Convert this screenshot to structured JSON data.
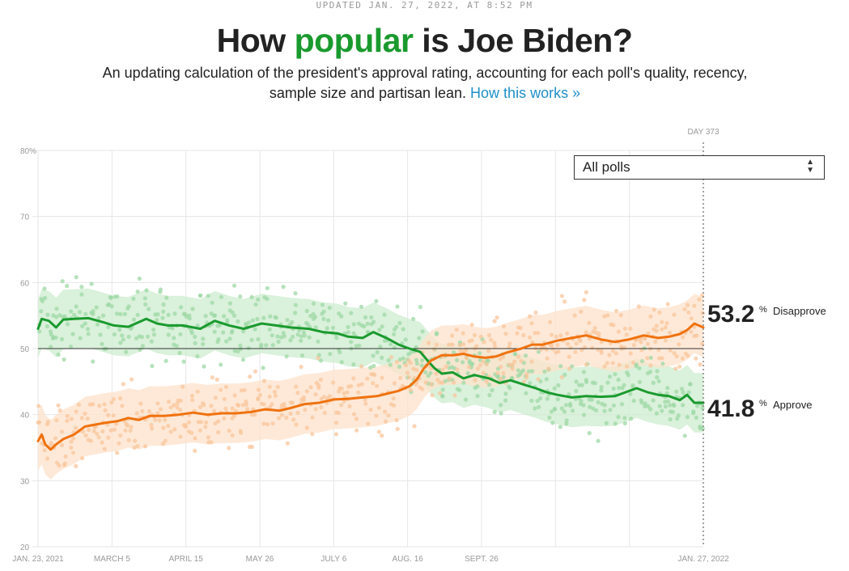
{
  "header": {
    "updated": "UPDATED JAN. 27, 2022, AT 8:52 PM",
    "title_pre": "How ",
    "title_highlight": "popular",
    "title_post": " is Joe Biden?",
    "subtitle": "An updating calculation of the president's approval rating, accounting for each poll's quality, recency, sample size and partisan lean.",
    "subtitle_link": "How this works »"
  },
  "filter": {
    "selected": "All polls"
  },
  "colors": {
    "approve": "#1a9a2e",
    "approve_band": "#cdeccf",
    "approve_dot": "#9ed8a5",
    "disapprove": "#f0720f",
    "disapprove_band": "#fde2cb",
    "disapprove_dot": "#f8c69c",
    "grid": "#e6e6e6",
    "axis_text": "#999999",
    "midline": "#333333"
  },
  "day_marker": "DAY 373",
  "results": {
    "disapprove_value": "53.2",
    "disapprove_label": "Disapprove",
    "approve_value": "41.8",
    "approve_label": "Approve",
    "pct": "%"
  },
  "chart_data": {
    "type": "line",
    "title": "How popular is Joe Biden?",
    "ylim": [
      20,
      80
    ],
    "yticks": [
      20,
      30,
      40,
      50,
      60,
      70,
      80
    ],
    "ytick_labels": [
      "20",
      "30",
      "40",
      "50",
      "60",
      "70",
      "80%"
    ],
    "xlim": [
      0,
      369
    ],
    "xticks": [
      {
        "day": 0,
        "label": "JAN. 23, 2021"
      },
      {
        "day": 41,
        "label": "MARCH 5"
      },
      {
        "day": 82,
        "label": "APRIL 15"
      },
      {
        "day": 123,
        "label": "MAY 26"
      },
      {
        "day": 164,
        "label": "JULY 6"
      },
      {
        "day": 205,
        "label": "AUG. 16"
      },
      {
        "day": 246,
        "label": "SEPT. 26"
      },
      {
        "day": 287,
        "label": ""
      },
      {
        "day": 328,
        "label": ""
      },
      {
        "day": 369,
        "label": "JAN. 27, 2022"
      }
    ],
    "gridlines": true,
    "reference_line": 50,
    "band_halfwidth": 4.5,
    "series": [
      {
        "name": "Approve",
        "final": 41.8,
        "points": [
          [
            0,
            53.0
          ],
          [
            2,
            54.5
          ],
          [
            6,
            54.2
          ],
          [
            10,
            53.2
          ],
          [
            14,
            54.4
          ],
          [
            20,
            54.5
          ],
          [
            28,
            54.6
          ],
          [
            36,
            54.0
          ],
          [
            42,
            53.5
          ],
          [
            50,
            53.3
          ],
          [
            56,
            54.0
          ],
          [
            60,
            54.5
          ],
          [
            66,
            53.8
          ],
          [
            72,
            53.5
          ],
          [
            80,
            53.5
          ],
          [
            90,
            53.0
          ],
          [
            98,
            54.2
          ],
          [
            106,
            53.5
          ],
          [
            114,
            53.0
          ],
          [
            124,
            53.8
          ],
          [
            132,
            53.5
          ],
          [
            140,
            53.2
          ],
          [
            150,
            53.0
          ],
          [
            158,
            52.5
          ],
          [
            166,
            52.3
          ],
          [
            172,
            51.8
          ],
          [
            180,
            51.6
          ],
          [
            186,
            52.5
          ],
          [
            194,
            51.5
          ],
          [
            200,
            50.6
          ],
          [
            206,
            50.0
          ],
          [
            212,
            49.5
          ],
          [
            216,
            48.2
          ],
          [
            220,
            47.0
          ],
          [
            224,
            46.2
          ],
          [
            230,
            46.4
          ],
          [
            236,
            45.5
          ],
          [
            242,
            46.0
          ],
          [
            250,
            45.5
          ],
          [
            256,
            44.8
          ],
          [
            262,
            45.2
          ],
          [
            270,
            44.5
          ],
          [
            276,
            44.0
          ],
          [
            282,
            43.4
          ],
          [
            288,
            43.0
          ],
          [
            296,
            42.6
          ],
          [
            304,
            42.8
          ],
          [
            312,
            42.7
          ],
          [
            320,
            42.8
          ],
          [
            326,
            43.4
          ],
          [
            332,
            44.0
          ],
          [
            338,
            43.4
          ],
          [
            344,
            43.0
          ],
          [
            350,
            42.8
          ],
          [
            356,
            42.2
          ],
          [
            360,
            43.0
          ],
          [
            364,
            41.8
          ],
          [
            369,
            41.8
          ]
        ]
      },
      {
        "name": "Disapprove",
        "final": 53.2,
        "points": [
          [
            0,
            36.0
          ],
          [
            2,
            37.0
          ],
          [
            4,
            35.5
          ],
          [
            7,
            34.7
          ],
          [
            10,
            35.5
          ],
          [
            14,
            36.3
          ],
          [
            20,
            37.0
          ],
          [
            26,
            38.2
          ],
          [
            32,
            38.5
          ],
          [
            38,
            38.8
          ],
          [
            44,
            39.0
          ],
          [
            50,
            39.5
          ],
          [
            56,
            39.2
          ],
          [
            62,
            39.8
          ],
          [
            70,
            39.8
          ],
          [
            78,
            40.0
          ],
          [
            86,
            40.3
          ],
          [
            94,
            40.0
          ],
          [
            102,
            40.2
          ],
          [
            110,
            40.2
          ],
          [
            118,
            40.4
          ],
          [
            126,
            40.8
          ],
          [
            134,
            40.6
          ],
          [
            140,
            41.0
          ],
          [
            148,
            41.6
          ],
          [
            156,
            41.8
          ],
          [
            164,
            42.3
          ],
          [
            172,
            42.4
          ],
          [
            180,
            42.6
          ],
          [
            188,
            42.8
          ],
          [
            194,
            43.2
          ],
          [
            200,
            43.6
          ],
          [
            206,
            44.3
          ],
          [
            210,
            45.3
          ],
          [
            214,
            47.0
          ],
          [
            218,
            48.2
          ],
          [
            224,
            49.0
          ],
          [
            230,
            49.0
          ],
          [
            236,
            49.2
          ],
          [
            242,
            48.8
          ],
          [
            248,
            48.6
          ],
          [
            254,
            48.8
          ],
          [
            260,
            49.4
          ],
          [
            268,
            50.0
          ],
          [
            274,
            50.6
          ],
          [
            280,
            50.6
          ],
          [
            288,
            51.2
          ],
          [
            296,
            51.6
          ],
          [
            304,
            52.0
          ],
          [
            312,
            51.4
          ],
          [
            320,
            51.0
          ],
          [
            328,
            51.4
          ],
          [
            336,
            52.0
          ],
          [
            344,
            51.6
          ],
          [
            350,
            51.8
          ],
          [
            356,
            52.2
          ],
          [
            360,
            52.8
          ],
          [
            364,
            53.8
          ],
          [
            369,
            53.2
          ]
        ]
      }
    ]
  }
}
